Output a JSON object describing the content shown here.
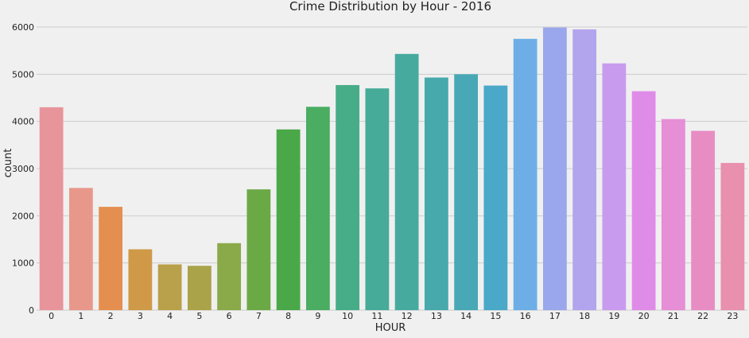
{
  "chart_data": {
    "type": "bar",
    "title": "Crime Distribution by Hour - 2016",
    "xlabel": "HOUR",
    "ylabel": "count",
    "ylim": [
      0,
      6000
    ],
    "yticks": [
      0,
      1000,
      2000,
      3000,
      4000,
      5000,
      6000
    ],
    "grid": true,
    "categories": [
      "0",
      "1",
      "2",
      "3",
      "4",
      "5",
      "6",
      "7",
      "8",
      "9",
      "10",
      "11",
      "12",
      "13",
      "14",
      "15",
      "16",
      "17",
      "18",
      "19",
      "20",
      "21",
      "22",
      "23"
    ],
    "values": [
      4300,
      2590,
      2190,
      1290,
      970,
      940,
      1420,
      2560,
      3830,
      4310,
      4770,
      4700,
      5430,
      4930,
      5000,
      4760,
      5750,
      5990,
      5950,
      5230,
      4640,
      4050,
      3800,
      3120
    ],
    "colors": [
      "#e8949b",
      "#e8988a",
      "#e48f50",
      "#cf9947",
      "#b9a04a",
      "#aaa349",
      "#8aa948",
      "#6ba947",
      "#4aa848",
      "#4aad62",
      "#47ad88",
      "#46ab98",
      "#47aa9f",
      "#47a9ac",
      "#48a8b6",
      "#4aa8c8",
      "#6daee6",
      "#9aa7ec",
      "#b2a5ed",
      "#c89bef",
      "#df8ce8",
      "#e68ed6",
      "#e78dc3",
      "#e890ad"
    ]
  }
}
